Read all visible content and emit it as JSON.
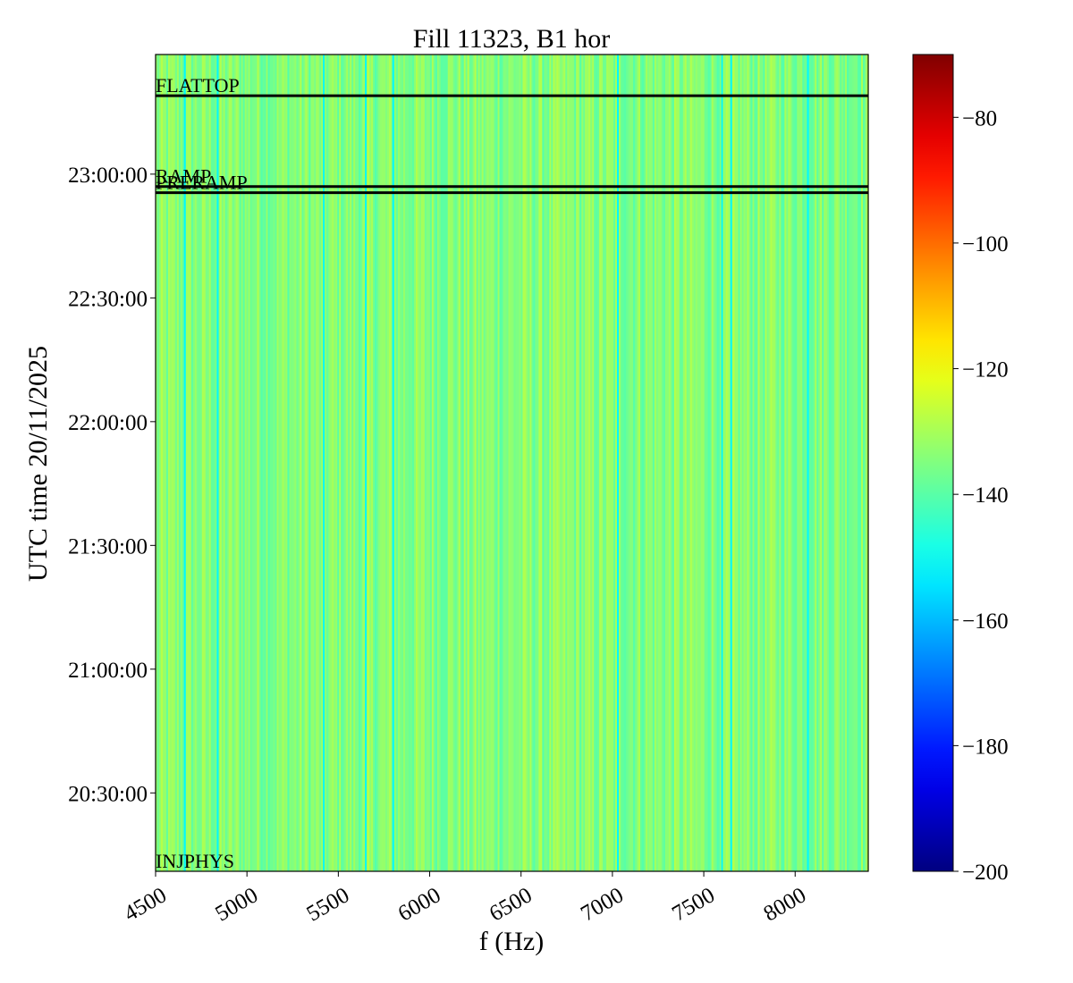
{
  "chart_data": {
    "type": "heatmap",
    "title": "Fill 11323, B1 hor",
    "xlabel": "f (Hz)",
    "ylabel": "UTC time 20/11/2025",
    "xlim": [
      4500,
      8400
    ],
    "ylim": [
      "20:11:00",
      "23:29:00"
    ],
    "x_ticks": [
      4500,
      5000,
      5500,
      6000,
      6500,
      7000,
      7500,
      8000
    ],
    "y_ticks": [
      "20:30:00",
      "21:00:00",
      "21:30:00",
      "22:00:00",
      "22:30:00",
      "23:00:00"
    ],
    "colormap": "jet",
    "colorbar": {
      "range": [
        -200,
        -70
      ],
      "ticks": [
        -80,
        -100,
        -120,
        -140,
        -160,
        -180,
        -200
      ],
      "tick_labels": [
        "−80",
        "−100",
        "−120",
        "−140",
        "−160",
        "−180",
        "−200"
      ]
    },
    "typical_value": -137,
    "value_range_in_map": [
      -148,
      -128
    ],
    "dark_lines_hz": [
      4660,
      4840,
      5420,
      5650,
      5800,
      7030,
      7600,
      7650,
      8070
    ],
    "mode_lines": [
      {
        "label": "INJPHYS",
        "time": "20:11:00"
      },
      {
        "label": "PRERAMP",
        "time": "22:55:30"
      },
      {
        "label": "RAMP",
        "time": "22:57:00"
      },
      {
        "label": "FLATTOP",
        "time": "23:19:00"
      }
    ]
  },
  "colors": {
    "jet_stops": [
      "#00007f",
      "#0000ff",
      "#007fff",
      "#00ffff",
      "#7fff7f",
      "#ffff00",
      "#ff7f00",
      "#ff0000",
      "#7f0000"
    ],
    "phase_line": "#000000"
  }
}
